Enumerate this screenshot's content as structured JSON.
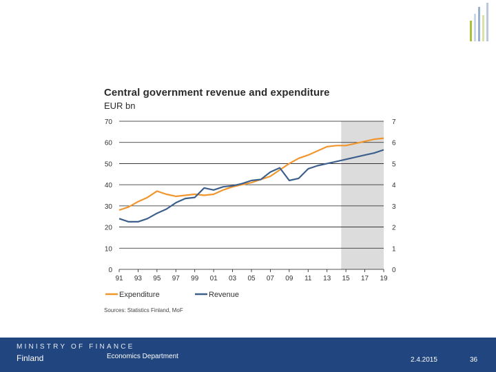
{
  "slide": {
    "footer": {
      "ministry": "MINISTRY OF FINANCE",
      "country": "Finland",
      "department": "Economics Department",
      "date": "2.4.2015",
      "page_number": "36",
      "background_color": "#21457e"
    },
    "decor_bar_colors": [
      "#a8c23a",
      "#c9d7e8",
      "#9ab0cf",
      "#d7e3a0",
      "#b7c8df"
    ]
  },
  "chart_data": {
    "type": "line",
    "title": "Central government revenue and expenditure",
    "subtitle": "EUR bn",
    "x": [
      1991,
      1992,
      1993,
      1994,
      1995,
      1996,
      1997,
      1998,
      1999,
      2000,
      2001,
      2002,
      2003,
      2004,
      2005,
      2006,
      2007,
      2008,
      2009,
      2010,
      2011,
      2012,
      2013,
      2014,
      2015,
      2016,
      2017,
      2018,
      2019
    ],
    "x_tick_labels": [
      "91",
      "93",
      "95",
      "97",
      "99",
      "01",
      "03",
      "05",
      "07",
      "09",
      "11",
      "13",
      "15",
      "17",
      "19"
    ],
    "ylim": [
      0,
      70
    ],
    "y_ticks": [
      "0",
      "10",
      "20",
      "30",
      "40",
      "50",
      "60",
      "70"
    ],
    "forecast_shade": {
      "from": 2015,
      "to": 2019,
      "color": "#dcdcdc"
    },
    "grid": true,
    "series": [
      {
        "name": "Expenditure",
        "color": "#f0962d",
        "values": [
          28,
          29.5,
          32,
          34,
          37,
          35.5,
          34.5,
          35,
          35.5,
          35,
          35.5,
          37.5,
          39,
          40,
          41,
          42.5,
          44,
          47,
          50,
          52.5,
          54,
          56,
          58,
          58.5,
          58.5,
          59.5,
          60.5,
          61.5,
          62
        ]
      },
      {
        "name": "Revenue",
        "color": "#3d5f8c",
        "values": [
          24,
          22.5,
          22.5,
          24,
          26.5,
          28.5,
          31.5,
          33.5,
          34,
          38.5,
          37.5,
          39,
          39.5,
          40.5,
          42,
          42.5,
          46,
          48,
          42,
          43,
          47.5,
          49,
          50,
          51,
          52,
          53,
          54,
          55,
          56.5
        ]
      }
    ],
    "legend": [
      "Expenditure",
      "Revenue"
    ],
    "legend_position": "bottom-left",
    "source": "Sources: Statistics Finland, MoF"
  }
}
